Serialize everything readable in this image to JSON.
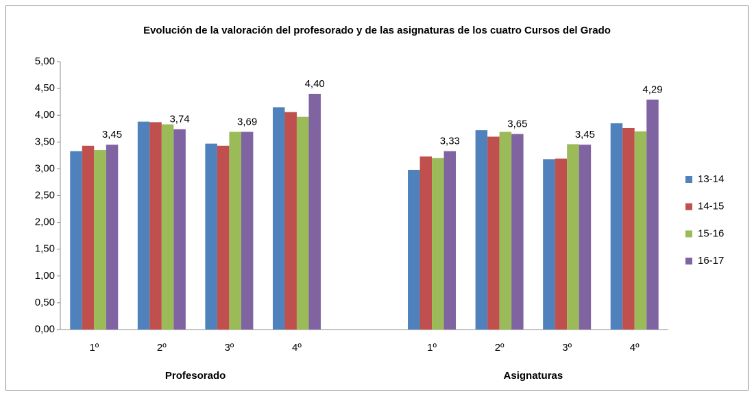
{
  "chart_data": {
    "type": "bar",
    "title": "Evolución de la valoración del profesorado y de las asignaturas de los cuatro Cursos del Grado",
    "categories": [
      "1º",
      "2º",
      "3º",
      "4º",
      null,
      "1º",
      "2º",
      "3º",
      "4º"
    ],
    "groups": [
      "Profesorado",
      "Asignaturas"
    ],
    "series": [
      {
        "name": "13-14",
        "color": "#4f81bd",
        "values": [
          3.33,
          3.88,
          3.47,
          4.15,
          null,
          2.98,
          3.72,
          3.18,
          3.85
        ]
      },
      {
        "name": "14-15",
        "color": "#c0504d",
        "values": [
          3.43,
          3.87,
          3.43,
          4.06,
          null,
          3.23,
          3.6,
          3.19,
          3.76
        ]
      },
      {
        "name": "15-16",
        "color": "#9bbb59",
        "values": [
          3.35,
          3.83,
          3.69,
          3.97,
          null,
          3.2,
          3.69,
          3.46,
          3.7
        ]
      },
      {
        "name": "16-17",
        "color": "#8064a2",
        "values": [
          3.45,
          3.74,
          3.69,
          4.4,
          null,
          3.33,
          3.65,
          3.45,
          4.29
        ],
        "value_labels": [
          "3,45",
          "3,74",
          "3,69",
          "4,40",
          null,
          "3,33",
          "3,65",
          "3,45",
          "4,29"
        ]
      }
    ],
    "ylim": [
      0,
      5
    ],
    "yticks": [
      {
        "value": 0,
        "label": "0,00"
      },
      {
        "value": 0.5,
        "label": "0,50"
      },
      {
        "value": 1,
        "label": "1,00"
      },
      {
        "value": 1.5,
        "label": "1,50"
      },
      {
        "value": 2,
        "label": "2,00"
      },
      {
        "value": 2.5,
        "label": "2,50"
      },
      {
        "value": 3,
        "label": "3,00"
      },
      {
        "value": 3.5,
        "label": "3,50"
      },
      {
        "value": 4,
        "label": "4,00"
      },
      {
        "value": 4.5,
        "label": "4,50"
      },
      {
        "value": 5,
        "label": "5,00"
      }
    ],
    "grid": false,
    "legend": "right"
  }
}
